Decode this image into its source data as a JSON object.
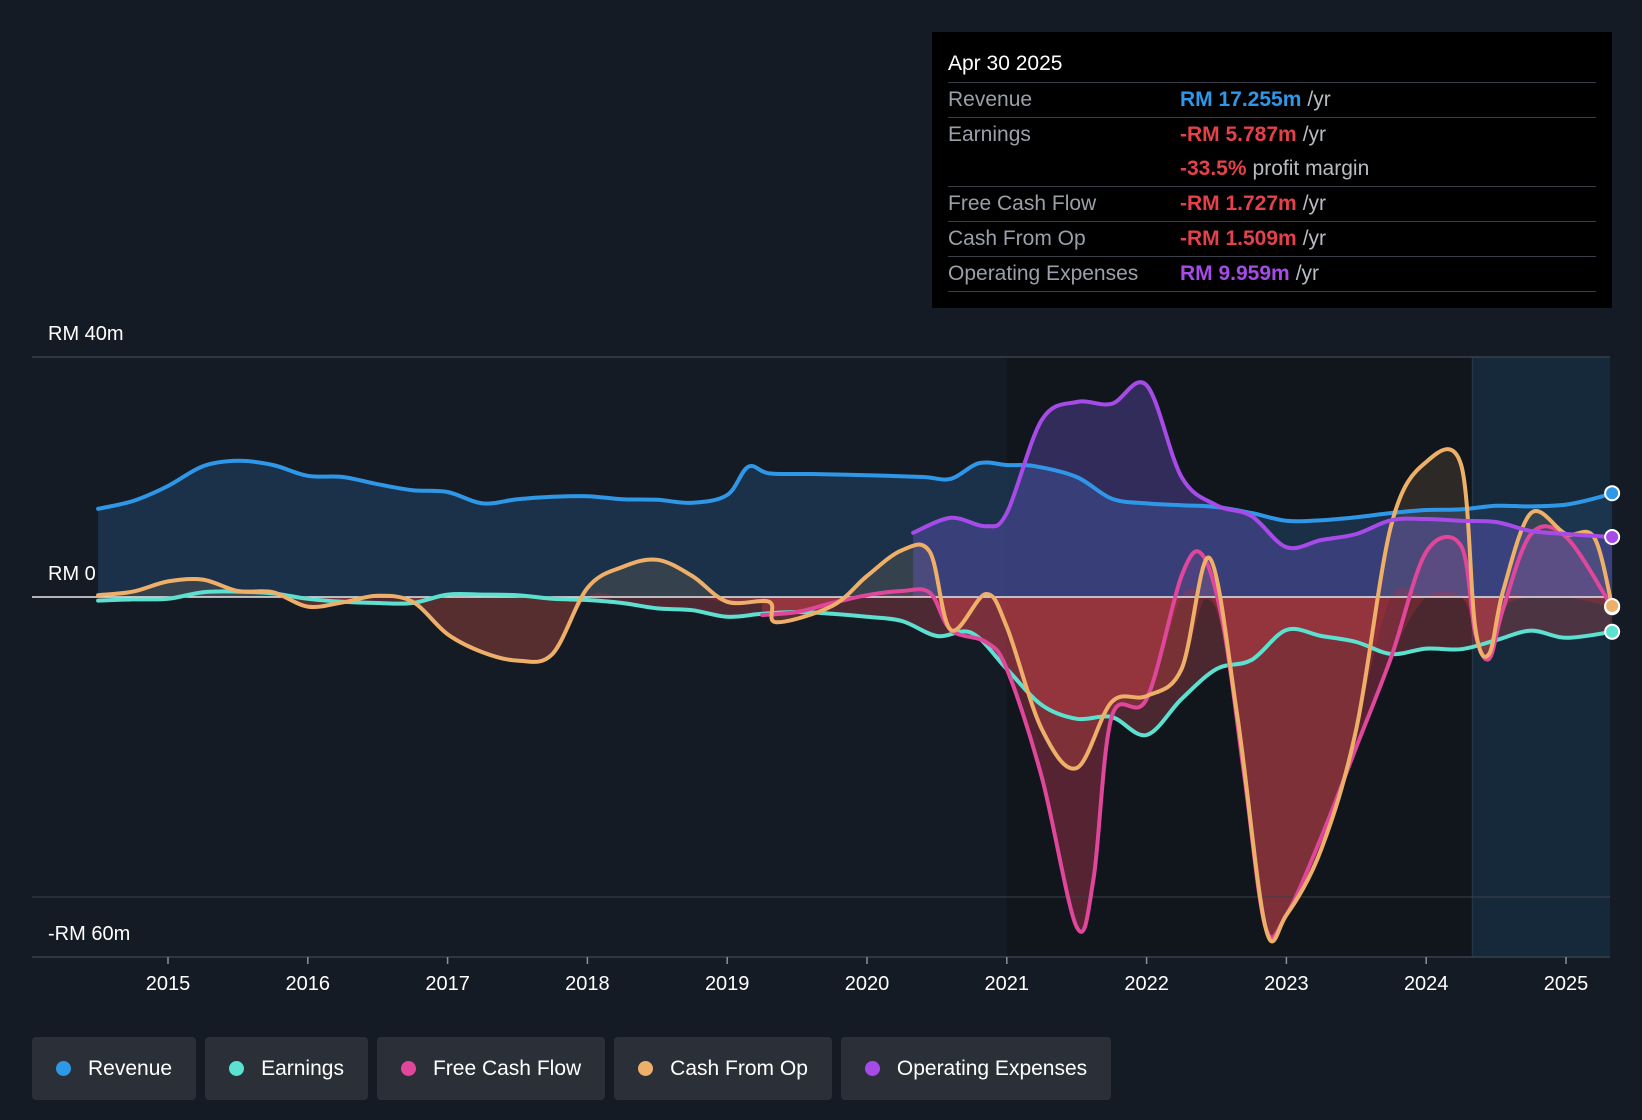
{
  "chart_data": {
    "type": "area",
    "y_axis": {
      "top_label": "RM 40m",
      "zero_label": "RM 0",
      "bottom_label": "-RM 60m",
      "ylim": [
        -60,
        40
      ]
    },
    "x_axis": {
      "ticks": [
        "2015",
        "2016",
        "2017",
        "2018",
        "2019",
        "2020",
        "2021",
        "2022",
        "2023",
        "2024",
        "2025"
      ],
      "xlim": [
        2014.5,
        2025.35
      ]
    },
    "series": [
      {
        "name": "Revenue",
        "color": "#2f97e8",
        "points": [
          [
            2014.5,
            14.7
          ],
          [
            2014.75,
            16.0
          ],
          [
            2015.0,
            18.5
          ],
          [
            2015.25,
            21.8
          ],
          [
            2015.5,
            22.7
          ],
          [
            2015.75,
            22.0
          ],
          [
            2016.0,
            20.2
          ],
          [
            2016.25,
            20.0
          ],
          [
            2016.5,
            18.8
          ],
          [
            2016.75,
            17.8
          ],
          [
            2017.0,
            17.5
          ],
          [
            2017.25,
            15.6
          ],
          [
            2017.5,
            16.3
          ],
          [
            2017.75,
            16.7
          ],
          [
            2018.0,
            16.8
          ],
          [
            2018.25,
            16.3
          ],
          [
            2018.5,
            16.2
          ],
          [
            2018.75,
            15.7
          ],
          [
            2019.0,
            17.0
          ],
          [
            2019.15,
            21.7
          ],
          [
            2019.3,
            20.6
          ],
          [
            2019.6,
            20.5
          ],
          [
            2020.0,
            20.3
          ],
          [
            2020.4,
            20.0
          ],
          [
            2020.6,
            19.7
          ],
          [
            2020.8,
            22.3
          ],
          [
            2021.0,
            22.0
          ],
          [
            2021.2,
            21.8
          ],
          [
            2021.5,
            20.0
          ],
          [
            2021.75,
            16.4
          ],
          [
            2022.0,
            15.6
          ],
          [
            2022.25,
            15.3
          ],
          [
            2022.5,
            15.0
          ],
          [
            2022.75,
            14.0
          ],
          [
            2023.0,
            12.7
          ],
          [
            2023.25,
            12.8
          ],
          [
            2023.5,
            13.3
          ],
          [
            2023.75,
            14.0
          ],
          [
            2024.0,
            14.5
          ],
          [
            2024.25,
            14.6
          ],
          [
            2024.5,
            15.2
          ],
          [
            2024.75,
            15.1
          ],
          [
            2025.0,
            15.4
          ],
          [
            2025.2,
            16.4
          ],
          [
            2025.33,
            17.3
          ]
        ]
      },
      {
        "name": "Earnings",
        "color": "#5ce0cf",
        "points": [
          [
            2014.5,
            -0.6
          ],
          [
            2014.75,
            -0.4
          ],
          [
            2015.0,
            -0.3
          ],
          [
            2015.25,
            0.8
          ],
          [
            2015.5,
            0.9
          ],
          [
            2015.75,
            0.6
          ],
          [
            2016.0,
            -0.3
          ],
          [
            2016.25,
            -0.8
          ],
          [
            2016.5,
            -1.0
          ],
          [
            2016.75,
            -1.0
          ],
          [
            2017.0,
            0.4
          ],
          [
            2017.25,
            0.4
          ],
          [
            2017.5,
            0.3
          ],
          [
            2017.75,
            -0.3
          ],
          [
            2018.0,
            -0.5
          ],
          [
            2018.25,
            -1.0
          ],
          [
            2018.5,
            -1.9
          ],
          [
            2018.75,
            -2.2
          ],
          [
            2019.0,
            -3.3
          ],
          [
            2019.25,
            -2.8
          ],
          [
            2019.5,
            -2.5
          ],
          [
            2019.75,
            -2.8
          ],
          [
            2020.0,
            -3.3
          ],
          [
            2020.25,
            -4.0
          ],
          [
            2020.5,
            -6.5
          ],
          [
            2020.75,
            -6.0
          ],
          [
            2021.0,
            -12.0
          ],
          [
            2021.25,
            -18.0
          ],
          [
            2021.5,
            -20.3
          ],
          [
            2021.75,
            -20.0
          ],
          [
            2022.0,
            -23.0
          ],
          [
            2022.25,
            -17.0
          ],
          [
            2022.5,
            -12.0
          ],
          [
            2022.75,
            -10.5
          ],
          [
            2023.0,
            -5.5
          ],
          [
            2023.25,
            -6.5
          ],
          [
            2023.5,
            -7.5
          ],
          [
            2023.75,
            -9.5
          ],
          [
            2024.0,
            -8.6
          ],
          [
            2024.25,
            -8.7
          ],
          [
            2024.5,
            -7.2
          ],
          [
            2024.75,
            -5.6
          ],
          [
            2025.0,
            -6.8
          ],
          [
            2025.33,
            -5.8
          ]
        ]
      },
      {
        "name": "Free Cash Flow",
        "color": "#e0479b",
        "points": [
          [
            2019.25,
            -3.0
          ],
          [
            2019.5,
            -2.5
          ],
          [
            2019.75,
            -1.0
          ],
          [
            2020.0,
            0.3
          ],
          [
            2020.25,
            1.0
          ],
          [
            2020.45,
            0.7
          ],
          [
            2020.6,
            -5.5
          ],
          [
            2020.85,
            -7.5
          ],
          [
            2021.0,
            -12.0
          ],
          [
            2021.25,
            -30.0
          ],
          [
            2021.5,
            -55.0
          ],
          [
            2021.62,
            -47.0
          ],
          [
            2021.75,
            -20.0
          ],
          [
            2022.0,
            -17.0
          ],
          [
            2022.25,
            3.5
          ],
          [
            2022.4,
            7.0
          ],
          [
            2022.55,
            -5.0
          ],
          [
            2022.7,
            -30.0
          ],
          [
            2022.85,
            -55.0
          ],
          [
            2023.0,
            -53.0
          ],
          [
            2023.25,
            -40.0
          ],
          [
            2023.5,
            -25.0
          ],
          [
            2023.75,
            -10.0
          ],
          [
            2024.0,
            7.5
          ],
          [
            2024.25,
            8.5
          ],
          [
            2024.35,
            -6.0
          ],
          [
            2024.45,
            -10.3
          ],
          [
            2024.55,
            -2.0
          ],
          [
            2024.75,
            10.5
          ],
          [
            2025.0,
            10.0
          ],
          [
            2025.33,
            -1.7
          ]
        ]
      },
      {
        "name": "Cash From Op",
        "color": "#eeb068",
        "points": [
          [
            2014.5,
            0.3
          ],
          [
            2014.75,
            0.9
          ],
          [
            2015.0,
            2.6
          ],
          [
            2015.25,
            2.9
          ],
          [
            2015.5,
            1.0
          ],
          [
            2015.75,
            0.8
          ],
          [
            2016.0,
            -1.6
          ],
          [
            2016.25,
            -0.9
          ],
          [
            2016.5,
            0.2
          ],
          [
            2016.75,
            -0.8
          ],
          [
            2017.0,
            -6.2
          ],
          [
            2017.25,
            -9.2
          ],
          [
            2017.5,
            -10.6
          ],
          [
            2017.75,
            -9.5
          ],
          [
            2018.0,
            1.5
          ],
          [
            2018.25,
            5.0
          ],
          [
            2018.5,
            6.2
          ],
          [
            2018.75,
            3.5
          ],
          [
            2019.0,
            -0.8
          ],
          [
            2019.3,
            -0.8
          ],
          [
            2019.35,
            -4.2
          ],
          [
            2019.75,
            -1.5
          ],
          [
            2020.0,
            3.5
          ],
          [
            2020.25,
            7.8
          ],
          [
            2020.45,
            7.5
          ],
          [
            2020.6,
            -5.5
          ],
          [
            2020.85,
            0.5
          ],
          [
            2021.0,
            -5.0
          ],
          [
            2021.25,
            -22.0
          ],
          [
            2021.5,
            -28.5
          ],
          [
            2021.75,
            -17.5
          ],
          [
            2022.0,
            -16.5
          ],
          [
            2022.25,
            -12.0
          ],
          [
            2022.45,
            6.5
          ],
          [
            2022.65,
            -20.0
          ],
          [
            2022.85,
            -55.0
          ],
          [
            2023.0,
            -53.0
          ],
          [
            2023.25,
            -42.0
          ],
          [
            2023.5,
            -22.0
          ],
          [
            2023.75,
            12.0
          ],
          [
            2024.0,
            22.5
          ],
          [
            2024.25,
            22.0
          ],
          [
            2024.35,
            -5.0
          ],
          [
            2024.45,
            -9.5
          ],
          [
            2024.55,
            1.0
          ],
          [
            2024.75,
            14.0
          ],
          [
            2025.0,
            10.5
          ],
          [
            2025.2,
            10.0
          ],
          [
            2025.33,
            -1.5
          ]
        ]
      },
      {
        "name": "Operating Expenses",
        "color": "#a74be8",
        "points": [
          [
            2020.33,
            10.7
          ],
          [
            2020.6,
            13.2
          ],
          [
            2020.85,
            11.8
          ],
          [
            2021.0,
            14.0
          ],
          [
            2021.25,
            29.5
          ],
          [
            2021.5,
            32.5
          ],
          [
            2021.75,
            32.2
          ],
          [
            2022.0,
            35.3
          ],
          [
            2022.25,
            20.0
          ],
          [
            2022.5,
            15.3
          ],
          [
            2022.75,
            13.5
          ],
          [
            2023.0,
            8.3
          ],
          [
            2023.25,
            9.5
          ],
          [
            2023.5,
            10.5
          ],
          [
            2023.75,
            12.8
          ],
          [
            2024.0,
            13.0
          ],
          [
            2024.25,
            12.7
          ],
          [
            2024.5,
            12.5
          ],
          [
            2024.75,
            11.0
          ],
          [
            2025.0,
            10.5
          ],
          [
            2025.33,
            10.0
          ]
        ]
      }
    ],
    "forecast_region_start": 2024.33
  },
  "tooltip": {
    "date": "Apr 30 2025",
    "rows": [
      {
        "label": "Revenue",
        "value": "RM 17.255m",
        "unit": "/yr",
        "color": "#2f97e8"
      },
      {
        "label": "Earnings",
        "value": "-RM 5.787m",
        "unit": "/yr",
        "color": "#e5414a"
      },
      {
        "label": "",
        "value": "-33.5%",
        "unit": "profit margin",
        "color": "#e5414a"
      },
      {
        "label": "Free Cash Flow",
        "value": "-RM 1.727m",
        "unit": "/yr",
        "color": "#e5414a"
      },
      {
        "label": "Cash From Op",
        "value": "-RM 1.509m",
        "unit": "/yr",
        "color": "#e5414a"
      },
      {
        "label": "Operating Expenses",
        "value": "RM 9.959m",
        "unit": "/yr",
        "color": "#a74be8"
      }
    ]
  },
  "legend": [
    {
      "label": "Revenue",
      "color": "#2f97e8"
    },
    {
      "label": "Earnings",
      "color": "#5ce0cf"
    },
    {
      "label": "Free Cash Flow",
      "color": "#e0479b"
    },
    {
      "label": "Cash From Op",
      "color": "#eeb068"
    },
    {
      "label": "Operating Expenses",
      "color": "#a74be8"
    }
  ]
}
